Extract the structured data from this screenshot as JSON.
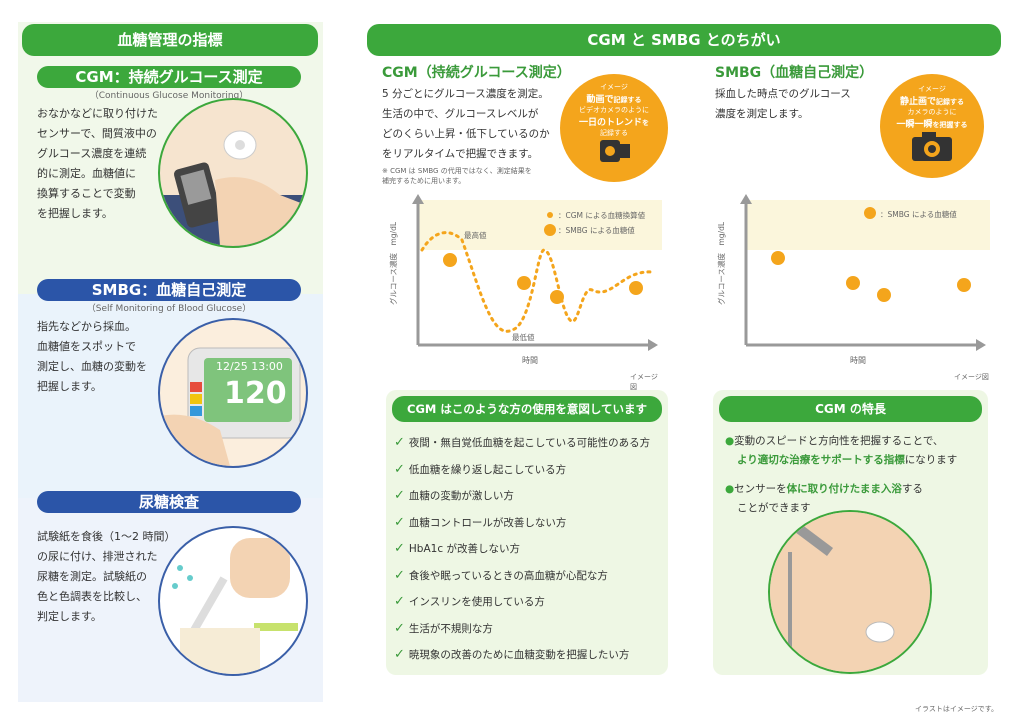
{
  "left": {
    "main_title": "血糖管理の指標",
    "cgm": {
      "title": "CGM：持続グルコース測定",
      "english": "（Continuous Glucose Monitoring）",
      "lines": [
        "おなかなどに取り付けた",
        "センサーで、間質液中の",
        "グルコース濃度を連続",
        "的に測定。血糖値に",
        "換算することで変動",
        "を把握します。"
      ]
    },
    "smbg": {
      "title": "SMBG：血糖自己測定",
      "english": "（Self Monitoring of Blood Glucose）",
      "lines": [
        "指先などから採血。",
        "血糖値をスポットで",
        "測定し、血糖の変動を",
        "把握します。"
      ],
      "device_time": "12/25 13:00",
      "device_value": "120"
    },
    "urine": {
      "title": "尿糖検査",
      "lines": [
        "試験紙を食後（1〜2 時間）",
        "の尿に付け、排泄された",
        "尿糖を測定。試験紙の",
        "色と色調表を比較し、",
        "判定します。"
      ]
    }
  },
  "right": {
    "main_title": "CGM と SMBG とのちがい",
    "cgm": {
      "title": "CGM（持続グルコース測定）",
      "lines": [
        "5 分ごとにグルコース濃度を測定。",
        "生活の中で、グルコースレベルが",
        "どのくらい上昇・低下しているのか",
        "をリアルタイムで把握できます。"
      ],
      "note_lines": [
        "※ CGM は SMBG の代用ではなく、測定結果を",
        "補完するために用います。"
      ],
      "bubble": {
        "l1": "イメージ",
        "l2": "動画で",
        "l2b": "記録する",
        "l3": "ビデオカメラのように",
        "l4": "一日のトレンド",
        "l4b": "を",
        "l5": "記録する"
      }
    },
    "smbg": {
      "title": "SMBG（血糖自己測定）",
      "lines": [
        "採血した時点でのグルコース",
        "濃度を測定します。"
      ],
      "bubble": {
        "l1": "イメージ",
        "l2": "静止画で",
        "l2b": "記録する",
        "l3": "カメラのように",
        "l4": "一瞬一瞬",
        "l4b": "を把握する"
      }
    },
    "chart_left": {
      "ylabel": "グルコース濃度　mg/dL",
      "xlabel": "時間",
      "legend_cgm": "：CGM による血糖換算値",
      "legend_smbg": "：SMBG による血糖値",
      "max_label": "最高値",
      "min_label": "最低値",
      "image_note": "イメージ図"
    },
    "chart_right": {
      "ylabel": "グルコース濃度　mg/dL",
      "xlabel": "時間",
      "legend_smbg": "：SMBG による血糖値",
      "image_note": "イメージ図"
    },
    "intended": {
      "title": "CGM はこのような方の使用を意図しています",
      "items": [
        "夜間・無自覚低血糖を起こしている可能性のある方",
        "低血糖を繰り返し起こしている方",
        "血糖の変動が激しい方",
        "血糖コントロールが改善しない方",
        "HbA1c が改善しない方",
        "食後や眠っているときの高血糖が心配な方",
        "インスリンを使用している方",
        "生活が不規則な方",
        "暁現象の改善のために血糖変動を把握したい方"
      ]
    },
    "features": {
      "title": "CGM の特長",
      "f1_l1": "変動のスピードと方向性を把握することで、",
      "f1_l2": "より適切な治療をサポートする指標",
      "f1_l2b": "になります",
      "f2_pre": "センサーを",
      "f2_emph": "体に取り付けたまま入浴",
      "f2_post": "する",
      "f2_l2": "ことができます"
    },
    "footer": "イラストはイメージです。"
  },
  "colors": {
    "green": "#3ca83c",
    "blue": "#2b55a8",
    "orange": "#f4a51c"
  }
}
